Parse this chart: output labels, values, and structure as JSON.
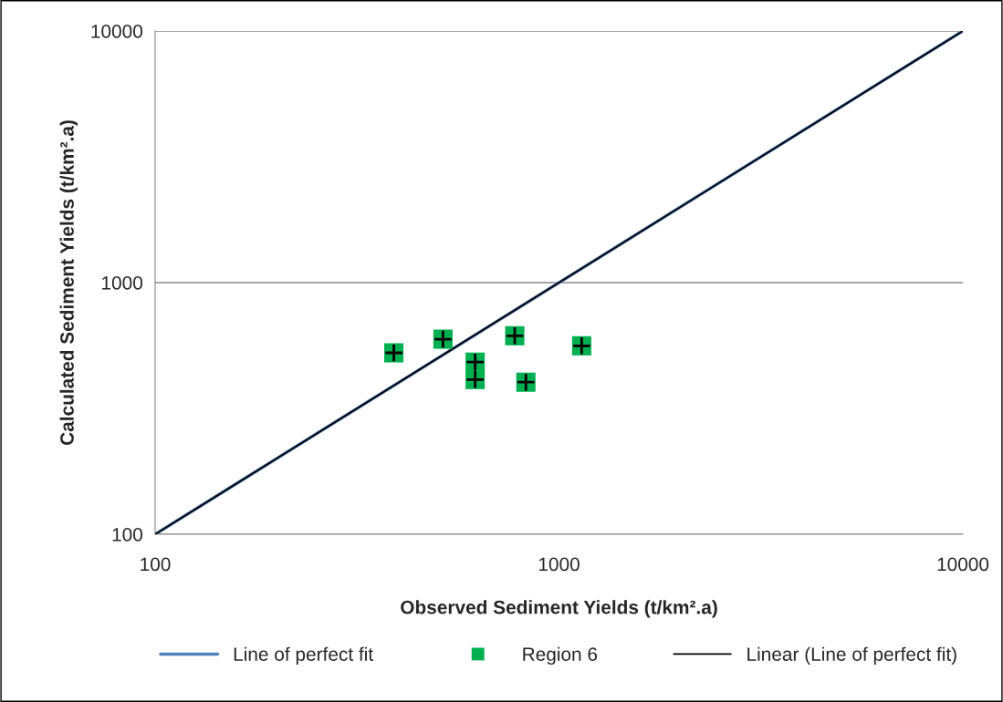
{
  "chart_data": {
    "type": "scatter",
    "xlabel": "Observed Sediment Yields (t/km².a)",
    "ylabel": "Calculated Sediment Yields (t/km².a)",
    "log": "xy",
    "xlim": [
      100,
      10000
    ],
    "ylim": [
      100,
      10000
    ],
    "xticks": [
      100,
      1000,
      10000
    ],
    "yticks": [
      100,
      1000,
      10000
    ],
    "grid": "y",
    "legend": "bottom",
    "series": [
      {
        "name": "Line of perfect fit",
        "type": "line",
        "color": "#4f81bd",
        "x": [
          100,
          10000
        ],
        "values": [
          100,
          10000
        ],
        "marker": "none"
      },
      {
        "name": "Region 6",
        "color": "#00b050",
        "marker": "square",
        "x": [
          390,
          516,
          620,
          620,
          777,
          828,
          1138
        ],
        "values": [
          526,
          596,
          483,
          412,
          615,
          402,
          561
        ]
      },
      {
        "name": "Linear (Line of perfect fit)",
        "type": "line",
        "color": "#000000",
        "x": [
          100,
          10000
        ],
        "values": [
          100,
          10000
        ],
        "marker": "none"
      }
    ]
  }
}
